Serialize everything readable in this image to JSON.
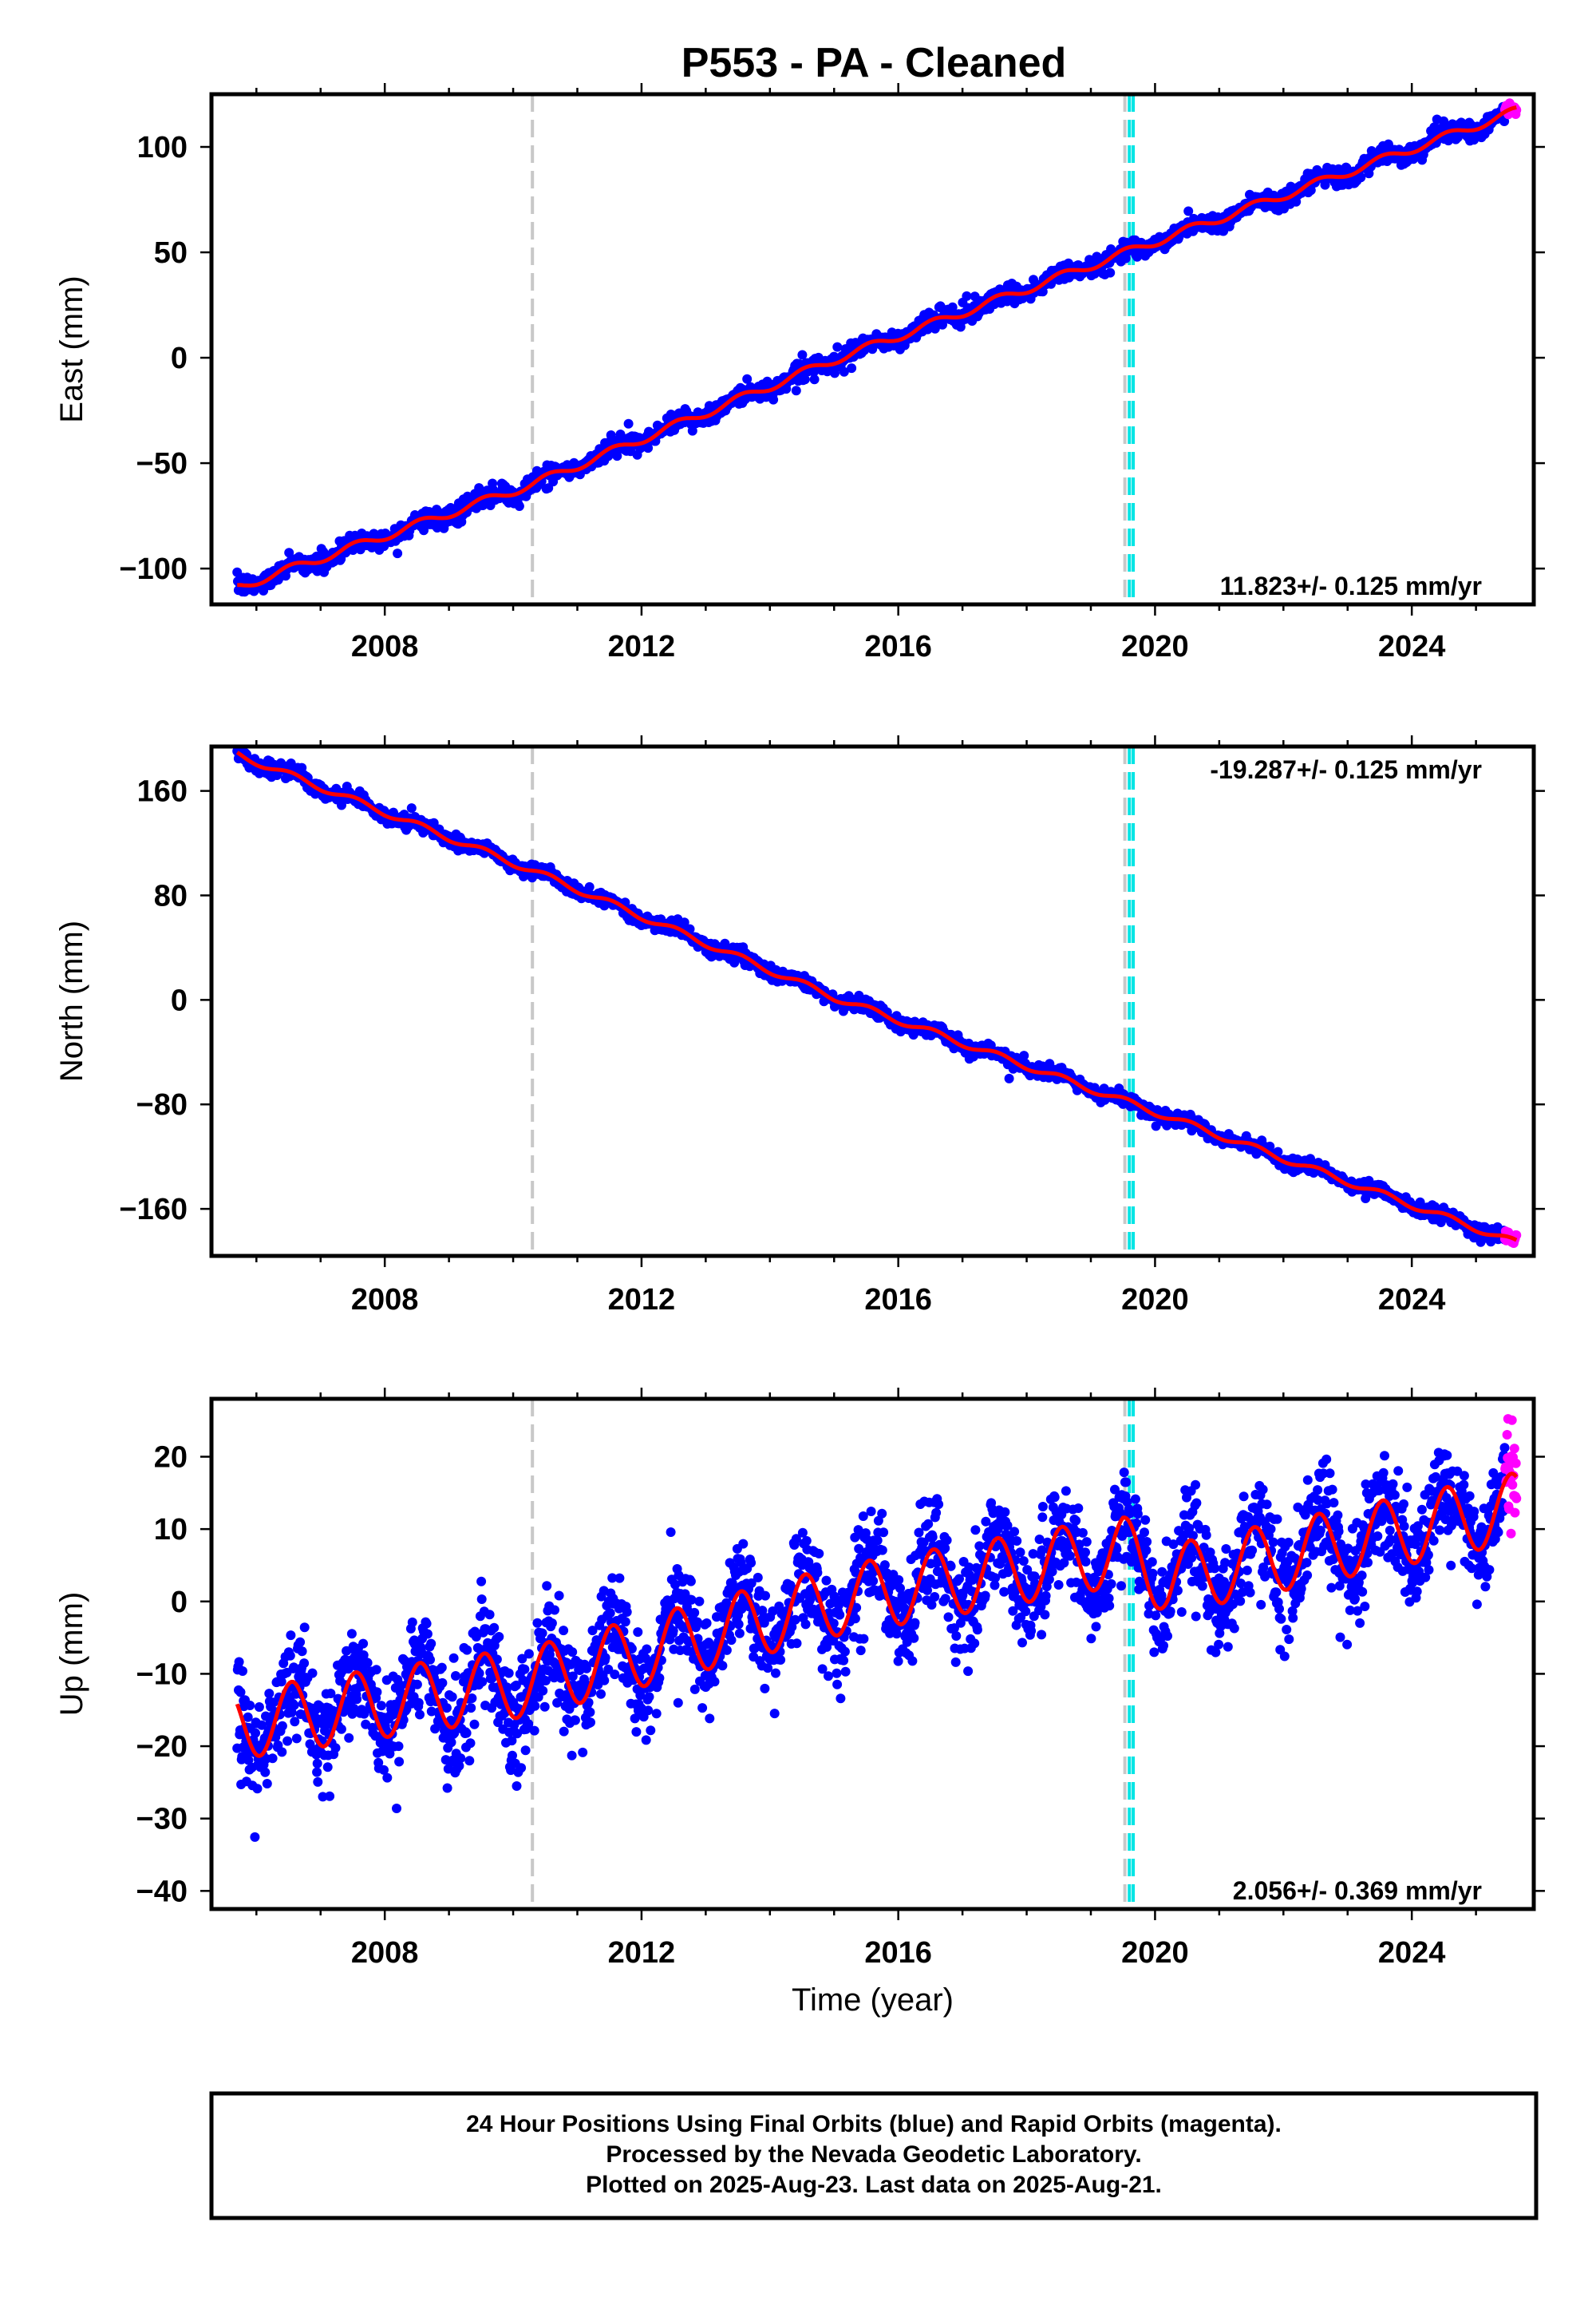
{
  "title": "P553  - PA - Cleaned",
  "colors": {
    "final_orbits": "#0000ff",
    "rapid_orbits": "#ff00ff",
    "model": "#ff0000",
    "antenna_change": "#c8c8c8",
    "equipment_change": "#00e5e5"
  },
  "chart_data": [
    {
      "type": "scatter",
      "name": "east",
      "ylabel": "East (mm)",
      "xlabel": "",
      "xlim": [
        2005.3,
        2025.9
      ],
      "ylim": [
        -117,
        125
      ],
      "xticks": [
        2008,
        2012,
        2016,
        2020,
        2024
      ],
      "yticks": [
        100,
        50,
        0,
        -50,
        -100
      ],
      "ytick_labels": [
        "100",
        "50",
        "0",
        "−50",
        "−100"
      ],
      "rate_label": "11.823+/- 0.125 mm/yr",
      "rate_position": "bottom-right",
      "data_start": 2005.7,
      "data_end": 2025.63,
      "rapid_start": 2025.45,
      "vlines_gray": [
        2010.3,
        2019.53
      ],
      "vlines_cyan": [
        2019.6,
        2019.66
      ],
      "trend": [
        [
          2005.7,
          -109
        ],
        [
          2010.3,
          -60
        ],
        [
          2015.0,
          -1
        ],
        [
          2020.0,
          55
        ],
        [
          2025.63,
          117
        ]
      ],
      "seasonal_amp": 2.0,
      "noise": 2.2,
      "npts": 1900
    },
    {
      "type": "scatter",
      "name": "north",
      "ylabel": "North (mm)",
      "xlabel": "",
      "xlim": [
        2005.3,
        2025.9
      ],
      "ylim": [
        -196,
        194
      ],
      "xticks": [
        2008,
        2012,
        2016,
        2020,
        2024
      ],
      "yticks": [
        160,
        80,
        0,
        -80,
        -160
      ],
      "ytick_labels": [
        "160",
        "80",
        "0",
        "−80",
        "−160"
      ],
      "rate_label": "-19.287+/- 0.125 mm/yr",
      "rate_position": "top-right",
      "data_start": 2005.7,
      "data_end": 2025.63,
      "rapid_start": 2025.45,
      "vlines_gray": [
        2010.3,
        2019.53
      ],
      "vlines_cyan": [
        2019.6,
        2019.66
      ],
      "trend": [
        [
          2005.7,
          188
        ],
        [
          2010.3,
          99
        ],
        [
          2015.0,
          2
        ],
        [
          2019.5,
          -77
        ],
        [
          2025.63,
          -186
        ]
      ],
      "seasonal_amp": 2.5,
      "noise": 2.6,
      "npts": 1900
    },
    {
      "type": "scatter",
      "name": "up",
      "ylabel": "Up (mm)",
      "xlabel": "Time (year)",
      "xlim": [
        2005.3,
        2025.9
      ],
      "ylim": [
        -42.5,
        28
      ],
      "xticks": [
        2008,
        2012,
        2016,
        2020,
        2024
      ],
      "yticks": [
        20,
        10,
        0,
        -10,
        -20,
        -30,
        -40
      ],
      "ytick_labels": [
        "20",
        "10",
        "0",
        "−10",
        "−20",
        "−30",
        "−40"
      ],
      "rate_label": "2.056+/- 0.369 mm/yr",
      "rate_position": "bottom-right",
      "data_start": 2005.7,
      "data_end": 2025.63,
      "rapid_start": 2025.45,
      "vlines_gray": [
        2010.3,
        2019.53
      ],
      "vlines_cyan": [
        2019.6,
        2019.66
      ],
      "trend": [
        [
          2005.7,
          -17
        ],
        [
          2010.3,
          -11
        ],
        [
          2015.0,
          0
        ],
        [
          2019.5,
          7
        ],
        [
          2020.2,
          3
        ],
        [
          2025.63,
          13
        ]
      ],
      "seasonal_amp": 4.8,
      "noise": 3.4,
      "npts": 2600
    }
  ],
  "footer": {
    "line1": "24 Hour Positions Using Final Orbits (blue) and Rapid Orbits (magenta).",
    "line2": "Processed by the Nevada Geodetic Laboratory.",
    "line3": "Plotted on 2025-Aug-23. Last data on 2025-Aug-21."
  }
}
